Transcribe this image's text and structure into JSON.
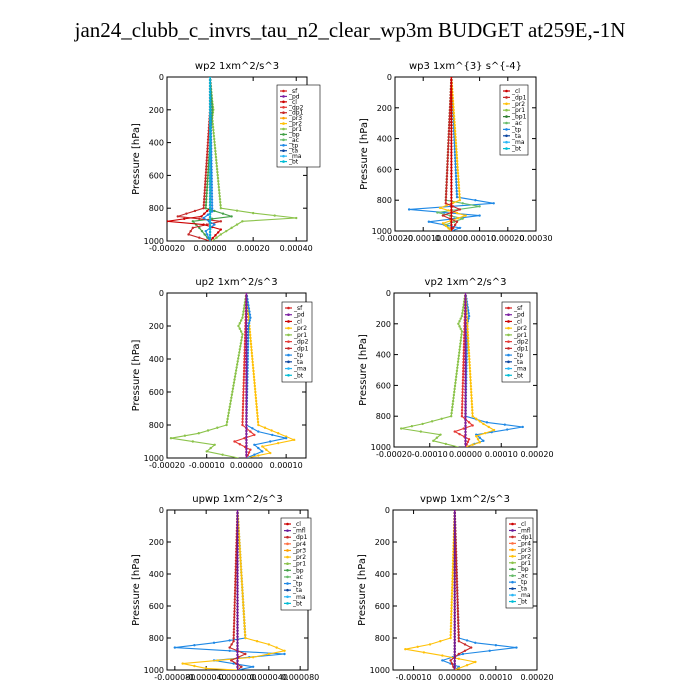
{
  "figure_title": "jan24_clubb_c_invrs_tau_n2_clear_wp3m  BUDGET at259E,-1N",
  "colors": {
    "sf": "#d62020",
    "pd": "#7b1fa2",
    "cl": "#cc0000",
    "dp2": "#e53935",
    "dp1": "#c62828",
    "pr3": "#ffa000",
    "pr2": "#ffc107",
    "pr1": "#8bc34a",
    "bp": "#43a047",
    "ac": "#66bb6a",
    "tp": "#1e88e5",
    "ta": "#0d47a1",
    "ma": "#29b6f6",
    "bt": "#00bcd4",
    "mfl": "#6a1b9a",
    "pr4": "#ff7043",
    "bp1": "#2e7d32"
  },
  "chart_data": [
    {
      "type": "line",
      "title": "wp2   1xm^2/s^3",
      "ylabel": "Pressure [hPa]",
      "ylim": [
        1000,
        0
      ],
      "yticks": [
        "0",
        "200",
        "400",
        "600",
        "800",
        "1000"
      ],
      "xlim": [
        -0.0002,
        0.00045
      ],
      "xticks": [
        -0.0002,
        0.0,
        0.0002,
        0.0004
      ],
      "xtick_labels": [
        "-0.00020",
        "0.00000",
        "0.00020",
        "0.00040"
      ],
      "legend": [
        "_sf",
        "_pd",
        "_cl",
        "_dp2",
        "_dp1",
        "_pr3",
        "_pr2",
        "_pr1",
        "_bp",
        "_ac",
        "_tp",
        "_ta",
        "_ma",
        "_bt"
      ],
      "legend_keys": [
        "sf",
        "pd",
        "cl",
        "dp2",
        "dp1",
        "pr3",
        "pr2",
        "pr1",
        "bp",
        "ac",
        "tp",
        "ta",
        "ma",
        "bt"
      ],
      "series": [
        {
          "key": "pr1",
          "p": [
            0,
            150,
            200,
            250,
            800,
            830,
            860,
            880,
            920,
            960,
            1000
          ],
          "v": [
            0,
            1e-05,
            1.5e-05,
            1e-05,
            5e-05,
            0.0002,
            0.0004,
            0.00015,
            0.0001,
            5e-05,
            1e-05
          ]
        },
        {
          "key": "bp",
          "p": [
            0,
            200,
            800,
            850,
            880,
            920,
            1000
          ],
          "v": [
            0,
            1e-05,
            -2e-05,
            0.0001,
            -8e-05,
            -5e-05,
            0
          ]
        },
        {
          "key": "dp1",
          "p": [
            0,
            200,
            800,
            850,
            880,
            920,
            960,
            1000
          ],
          "v": [
            0,
            0,
            -3e-05,
            -0.00015,
            5e-05,
            -8e-05,
            -0.0001,
            0
          ]
        },
        {
          "key": "cl",
          "p": [
            0,
            800,
            850,
            880,
            900,
            930,
            1000
          ],
          "v": [
            0,
            0,
            -4e-05,
            -0.0002,
            -3e-05,
            5e-05,
            0
          ]
        },
        {
          "key": "tp",
          "p": [
            0,
            820,
            860,
            900,
            940,
            1000
          ],
          "v": [
            0,
            1e-05,
            -3e-05,
            2e-05,
            -2e-05,
            0
          ]
        },
        {
          "key": "pd",
          "p": [
            0,
            1000
          ],
          "v": [
            0,
            0
          ]
        },
        {
          "key": "bt",
          "p": [
            0,
            1000
          ],
          "v": [
            0,
            0
          ]
        }
      ]
    },
    {
      "type": "line",
      "title": "wp3   1xm^{3} s^{-4}",
      "ylabel": "Pressure [hPa]",
      "ylim": [
        1000,
        0
      ],
      "yticks": [
        "0",
        "200",
        "400",
        "600",
        "800",
        "1000"
      ],
      "xlim": [
        -0.0002,
        0.0003
      ],
      "xticks": [
        -0.0002,
        -0.0001,
        0.0,
        0.0001,
        0.0002,
        0.0003
      ],
      "xtick_labels": [
        "-0.00020",
        "-0.00010",
        "0.00000",
        "0.00010",
        "0.00020",
        "0.00030"
      ],
      "legend": [
        "_cl",
        "_dp1",
        "_pr2",
        "_pr1",
        "_bp1",
        "_ac",
        "_tp",
        "_ta",
        "_ma",
        "_bt"
      ],
      "legend_keys": [
        "cl",
        "dp1",
        "pr2",
        "pr1",
        "bp1",
        "ac",
        "tp",
        "ta",
        "ma",
        "bt"
      ],
      "series": [
        {
          "key": "tp",
          "p": [
            0,
            780,
            820,
            860,
            900,
            940,
            980,
            1000
          ],
          "v": [
            0,
            2e-05,
            0.00015,
            -0.00015,
            0.0001,
            -8e-05,
            3e-05,
            0
          ]
        },
        {
          "key": "ac",
          "p": [
            0,
            800,
            840,
            880,
            920,
            960,
            1000
          ],
          "v": [
            0,
            -2e-05,
            0.0001,
            -5e-05,
            4e-05,
            -2e-05,
            0
          ]
        },
        {
          "key": "pr2",
          "p": [
            0,
            800,
            850,
            900,
            950,
            1000
          ],
          "v": [
            0,
            3e-05,
            -4e-05,
            5e-05,
            -3e-05,
            0
          ]
        },
        {
          "key": "dp1",
          "p": [
            0,
            820,
            860,
            900,
            940,
            1000
          ],
          "v": [
            0,
            -2e-05,
            3e-05,
            -3e-05,
            2e-05,
            0
          ]
        },
        {
          "key": "cl",
          "p": [
            0,
            1000
          ],
          "v": [
            0,
            0
          ]
        }
      ]
    },
    {
      "type": "line",
      "title": "up2   1xm^2/s^3",
      "ylabel": "Pressure [hPa]",
      "ylim": [
        1000,
        0
      ],
      "yticks": [
        "0",
        "200",
        "400",
        "600",
        "800",
        "1000"
      ],
      "xlim": [
        -0.0002,
        0.00015
      ],
      "xticks": [
        -0.0002,
        -0.0001,
        0.0,
        0.0001
      ],
      "xtick_labels": [
        "-0.00020",
        "-0.00010",
        "0.00000",
        "0.00010"
      ],
      "legend": [
        "_sf",
        "_pd",
        "_cl",
        "_pr2",
        "_pr1",
        "_dp2",
        "_dp1",
        "_tp",
        "_ta",
        "_ma",
        "_bt"
      ],
      "legend_keys": [
        "sf",
        "pd",
        "cl",
        "pr2",
        "pr1",
        "dp2",
        "dp1",
        "tp",
        "ta",
        "ma",
        "bt"
      ],
      "series": [
        {
          "key": "pr1",
          "p": [
            0,
            150,
            200,
            250,
            800,
            850,
            880,
            920,
            960,
            1000
          ],
          "v": [
            0,
            -1e-05,
            -2e-05,
            -1e-05,
            -5e-05,
            -0.00012,
            -0.00019,
            -8e-05,
            -0.0001,
            -2e-05
          ]
        },
        {
          "key": "pr2",
          "p": [
            0,
            800,
            850,
            890,
            930,
            970,
            1000
          ],
          "v": [
            0,
            3e-05,
            8e-05,
            0.00012,
            4e-05,
            6e-05,
            0
          ]
        },
        {
          "key": "tp",
          "p": [
            0,
            150,
            200,
            800,
            840,
            880,
            920,
            960,
            1000
          ],
          "v": [
            0,
            1e-05,
            5e-06,
            0,
            3e-05,
            0.0001,
            2e-05,
            4e-05,
            0
          ]
        },
        {
          "key": "dp2",
          "p": [
            0,
            800,
            860,
            900,
            950,
            1000
          ],
          "v": [
            0,
            -1e-05,
            2e-05,
            -3e-05,
            1e-05,
            0
          ]
        },
        {
          "key": "cl",
          "p": [
            0,
            1000
          ],
          "v": [
            0,
            0
          ]
        },
        {
          "key": "pd",
          "p": [
            0,
            1000
          ],
          "v": [
            0,
            0
          ]
        }
      ]
    },
    {
      "type": "line",
      "title": "vp2   1xm^2/s^3",
      "ylabel": "Pressure [hPa]",
      "ylim": [
        1000,
        0
      ],
      "yticks": [
        "0",
        "200",
        "400",
        "600",
        "800",
        "1000"
      ],
      "xlim": [
        -0.0002,
        0.0002
      ],
      "xticks": [
        -0.0002,
        -0.0001,
        0.0,
        0.0001,
        0.0002
      ],
      "xtick_labels": [
        "-0.00020",
        "-0.00010",
        "0.00000",
        "0.00010",
        "0.00020"
      ],
      "legend": [
        "_sf",
        "_pd",
        "_cl",
        "_pr2",
        "_pr1",
        "_dp2",
        "_dp1",
        "_tp",
        "_ta",
        "_ma",
        "_bt"
      ],
      "legend_keys": [
        "sf",
        "pd",
        "cl",
        "pr2",
        "pr1",
        "dp2",
        "dp1",
        "tp",
        "ta",
        "ma",
        "bt"
      ],
      "series": [
        {
          "key": "pr1",
          "p": [
            0,
            150,
            200,
            250,
            800,
            850,
            880,
            920,
            960,
            1000
          ],
          "v": [
            0,
            -1e-05,
            -2e-05,
            -1e-05,
            -4e-05,
            -0.00012,
            -0.00018,
            -7e-05,
            -9e-05,
            -2e-05
          ]
        },
        {
          "key": "tp",
          "p": [
            0,
            150,
            200,
            800,
            840,
            870,
            920,
            960,
            1000
          ],
          "v": [
            0,
            1e-05,
            5e-06,
            0,
            6e-05,
            0.00016,
            3e-05,
            5e-05,
            0
          ]
        },
        {
          "key": "pr2",
          "p": [
            0,
            800,
            850,
            890,
            930,
            970,
            1000
          ],
          "v": [
            0,
            2e-05,
            5e-05,
            8e-05,
            3e-05,
            4e-05,
            0
          ]
        },
        {
          "key": "dp2",
          "p": [
            0,
            800,
            860,
            900,
            950,
            1000
          ],
          "v": [
            0,
            -1e-05,
            2e-05,
            -3e-05,
            1e-05,
            0
          ]
        },
        {
          "key": "cl",
          "p": [
            0,
            1000
          ],
          "v": [
            0,
            0
          ]
        },
        {
          "key": "pd",
          "p": [
            0,
            1000
          ],
          "v": [
            0,
            0
          ]
        }
      ]
    },
    {
      "type": "line",
      "title": "upwp   1xm^2/s^3",
      "ylabel": "Pressure [hPa]",
      "ylim": [
        1000,
        0
      ],
      "yticks": [
        "0",
        "200",
        "400",
        "600",
        "800",
        "1000"
      ],
      "xlim": [
        -9e-05,
        9e-05
      ],
      "xticks": [
        -8e-05,
        -4e-05,
        0.0,
        4e-05,
        8e-05
      ],
      "xtick_labels": [
        "-0.000080",
        "-0.000040",
        "0.000000",
        "0.000040",
        "0.000080"
      ],
      "legend": [
        "_cl",
        "_mfl",
        "_dp1",
        "_pr4",
        "_pr3",
        "_pr2",
        "_pr1",
        "_bp",
        "_ac",
        "_tp",
        "_ta",
        "_ma",
        "_bt"
      ],
      "legend_keys": [
        "cl",
        "mfl",
        "dp1",
        "pr4",
        "pr3",
        "pr2",
        "pr1",
        "bp",
        "ac",
        "tp",
        "ta",
        "ma",
        "bt"
      ],
      "series": [
        {
          "key": "tp",
          "p": [
            0,
            800,
            830,
            860,
            900,
            940,
            980,
            1000
          ],
          "v": [
            0,
            1e-05,
            -3e-05,
            -8e-05,
            6e-05,
            -3e-05,
            2e-05,
            0
          ]
        },
        {
          "key": "pr2",
          "p": [
            0,
            800,
            840,
            880,
            920,
            960,
            990,
            1000
          ],
          "v": [
            0,
            1e-05,
            4e-05,
            6e-05,
            2e-05,
            -7e-05,
            -4e-05,
            0
          ]
        },
        {
          "key": "dp1",
          "p": [
            0,
            820,
            860,
            900,
            940,
            980,
            1000
          ],
          "v": [
            0,
            -5e-06,
            -1e-05,
            1e-05,
            -8e-06,
            5e-06,
            0
          ]
        },
        {
          "key": "cl",
          "p": [
            0,
            1000
          ],
          "v": [
            0,
            0
          ]
        },
        {
          "key": "mfl",
          "p": [
            0,
            1000
          ],
          "v": [
            0,
            0
          ]
        }
      ]
    },
    {
      "type": "line",
      "title": "vpwp   1xm^2/s^3",
      "ylabel": "Pressure [hPa]",
      "ylim": [
        1000,
        0
      ],
      "yticks": [
        "0",
        "200",
        "400",
        "600",
        "800",
        "1000"
      ],
      "xlim": [
        -0.00015,
        0.0002
      ],
      "xticks": [
        -0.0001,
        0.0,
        0.0001,
        0.0002
      ],
      "xtick_labels": [
        "-0.00010",
        "0.00000",
        "0.00010",
        "0.00020"
      ],
      "legend": [
        "_cl",
        "_mfl",
        "_dp1",
        "_pr4",
        "_pr3",
        "_pr2",
        "_pr1",
        "_bp",
        "_ac",
        "_tp",
        "_ta",
        "_ma",
        "_bt"
      ],
      "legend_keys": [
        "cl",
        "mfl",
        "dp1",
        "pr4",
        "pr3",
        "pr2",
        "pr1",
        "bp",
        "ac",
        "tp",
        "ta",
        "ma",
        "bt"
      ],
      "series": [
        {
          "key": "tp",
          "p": [
            0,
            800,
            830,
            860,
            900,
            940,
            980,
            1000
          ],
          "v": [
            0,
            1e-05,
            5e-05,
            0.00015,
            2e-05,
            -3e-05,
            1e-05,
            0
          ]
        },
        {
          "key": "pr2",
          "p": [
            0,
            800,
            840,
            870,
            910,
            950,
            990,
            1000
          ],
          "v": [
            0,
            -1e-05,
            -6e-05,
            -0.00012,
            -3e-05,
            5e-05,
            1e-05,
            0
          ]
        },
        {
          "key": "dp1",
          "p": [
            0,
            820,
            860,
            900,
            940,
            1000
          ],
          "v": [
            0,
            1e-05,
            4e-05,
            1e-05,
            -1e-05,
            0
          ]
        },
        {
          "key": "cl",
          "p": [
            0,
            1000
          ],
          "v": [
            0,
            0
          ]
        },
        {
          "key": "mfl",
          "p": [
            0,
            1000
          ],
          "v": [
            0,
            0
          ]
        }
      ]
    }
  ]
}
